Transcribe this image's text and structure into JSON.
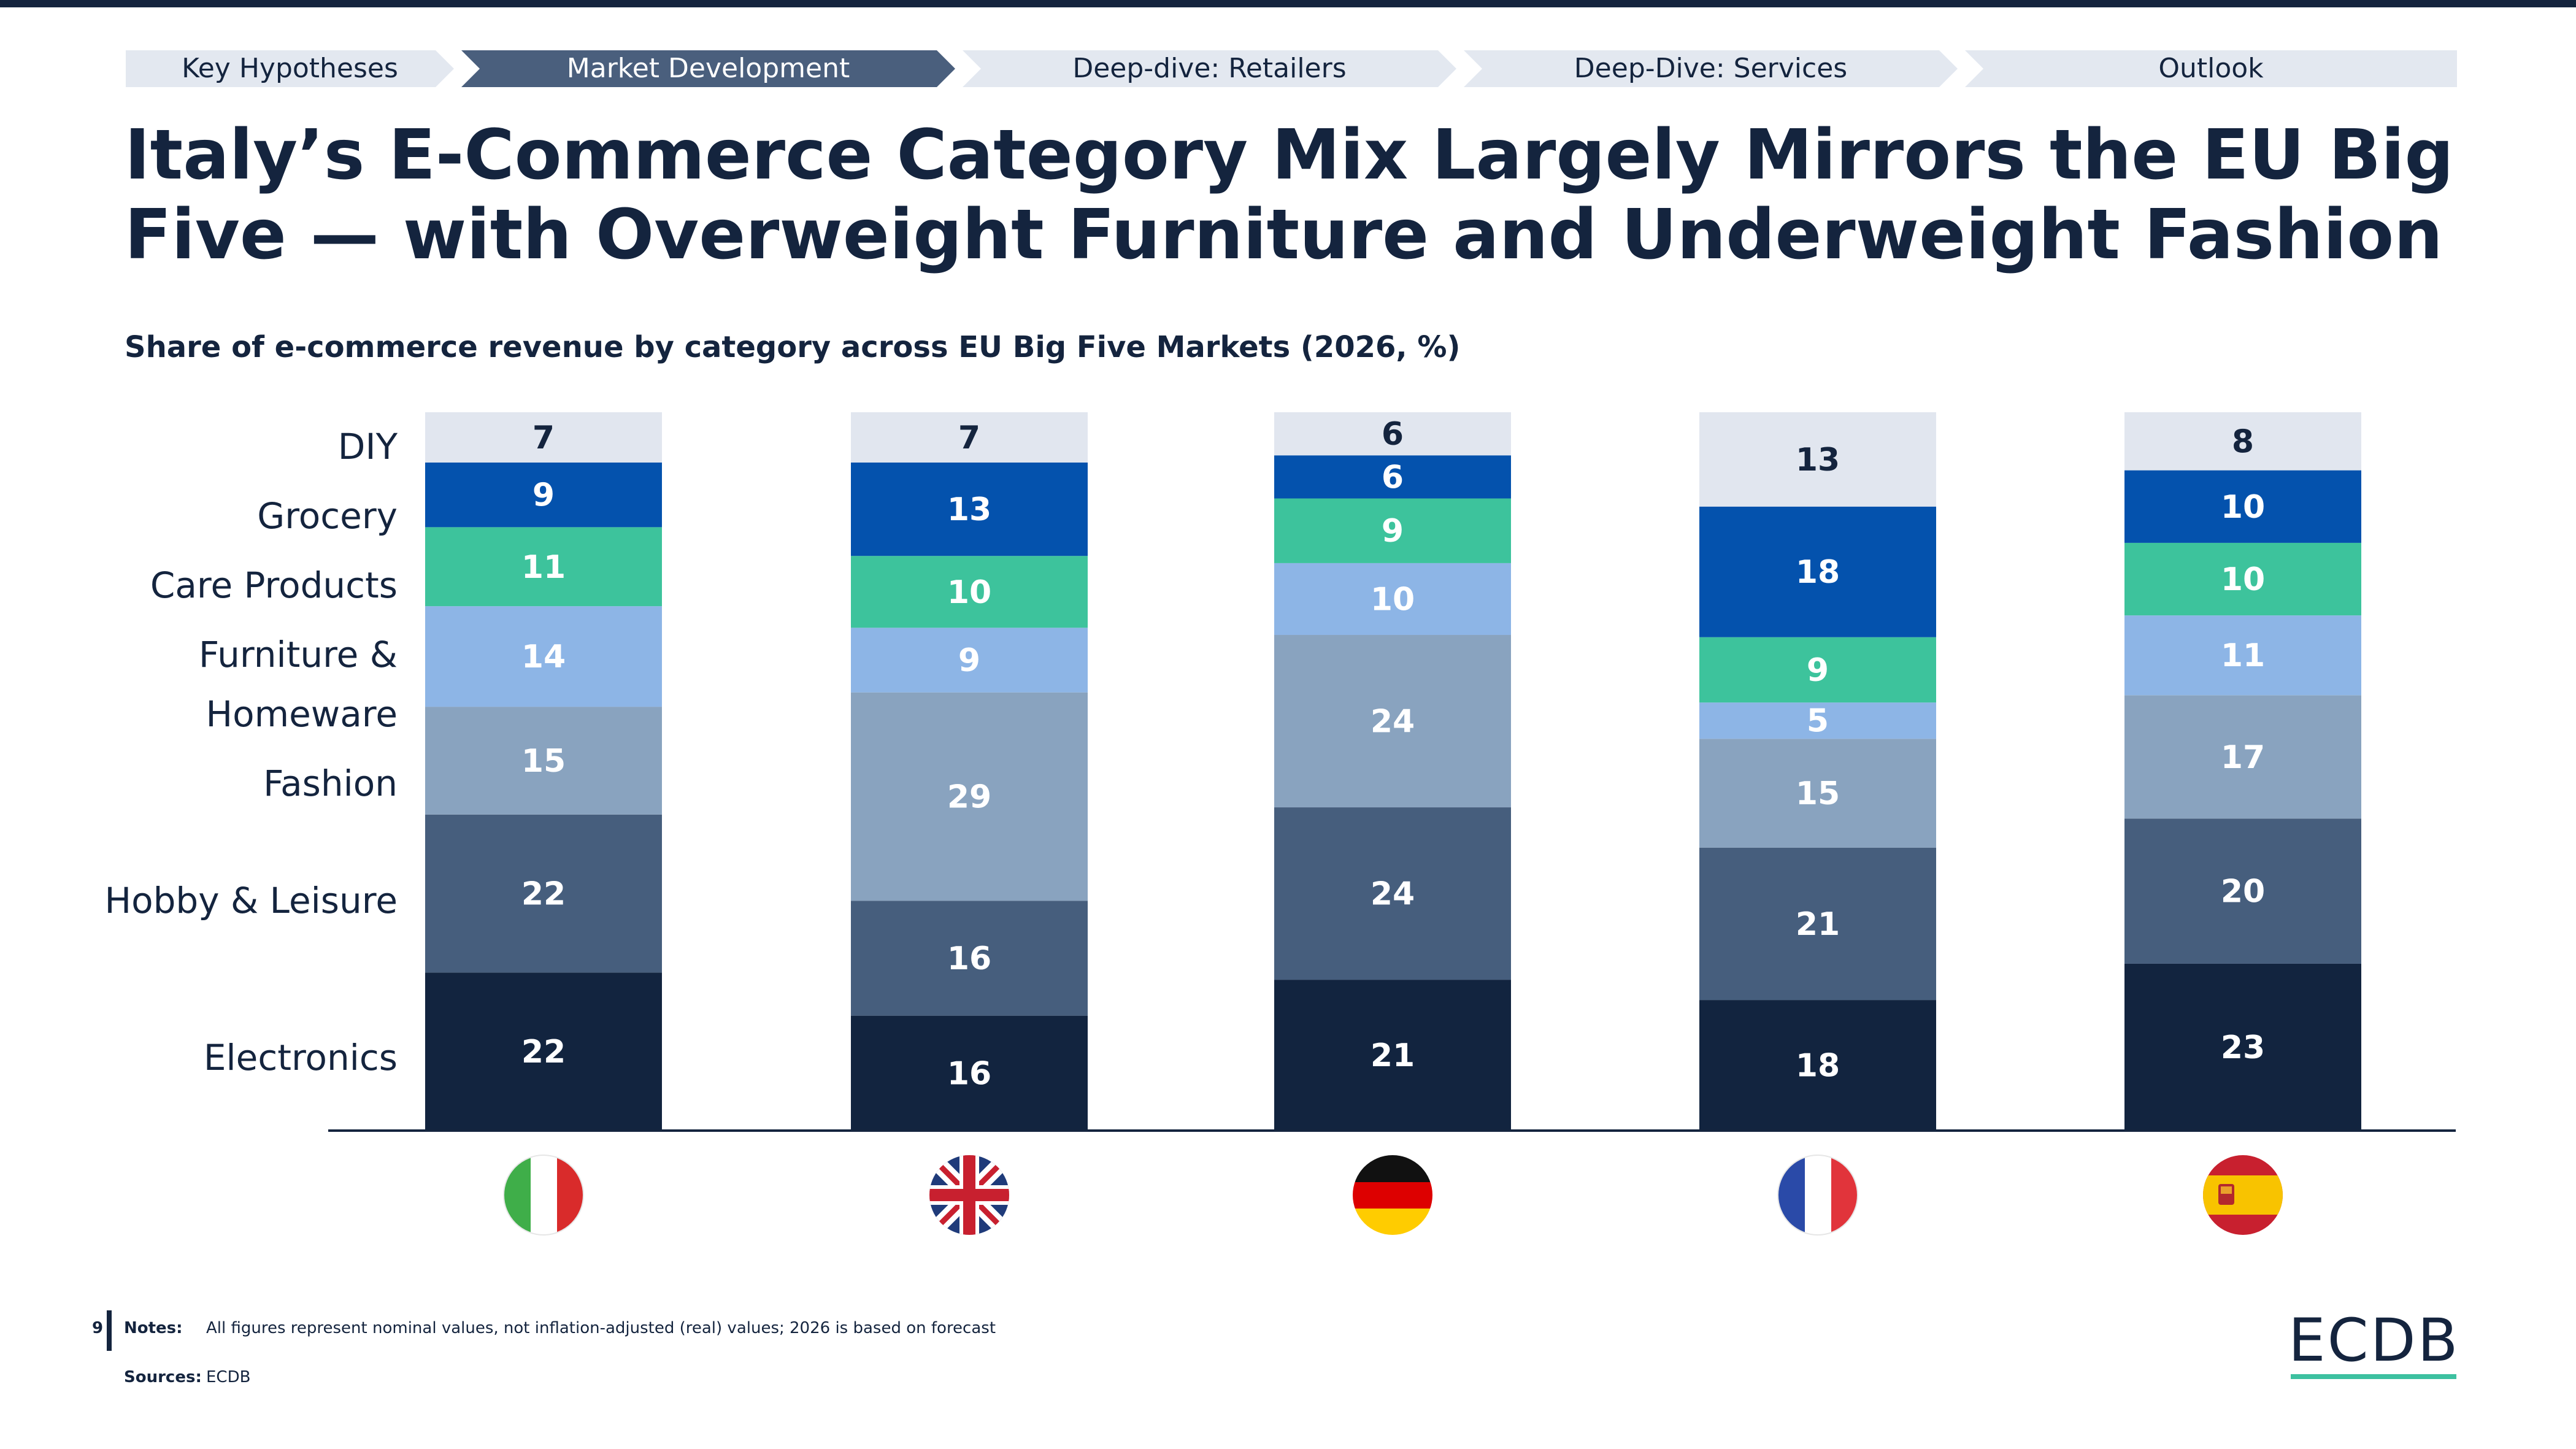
{
  "nav": {
    "steps": [
      {
        "label": "Key Hypotheses",
        "active": false
      },
      {
        "label": "Market Development",
        "active": true
      },
      {
        "label": "Deep-dive: Retailers",
        "active": false
      },
      {
        "label": "Deep-Dive: Services",
        "active": false
      },
      {
        "label": "Outlook",
        "active": false
      }
    ]
  },
  "title": "Italy’s E-Commerce Category Mix Largely Mirrors the EU Big Five — with Overweight Furniture and Underweight Fashion",
  "subtitle": "Share of e-commerce revenue by category across EU Big Five Markets (2026, %)",
  "category_labels": {
    "diy": "DIY",
    "grocery": "Grocery",
    "care": "Care Products",
    "furniture_1": "Furniture &",
    "furniture_2": "Homeware",
    "fashion": "Fashion",
    "hobby": "Hobby & Leisure",
    "electronics": "Electronics"
  },
  "chart_data": {
    "type": "bar",
    "stacked": true,
    "title": "Share of e-commerce revenue by category across EU Big Five Markets (2026, %)",
    "categories": [
      "Italy",
      "United Kingdom",
      "Germany",
      "France",
      "Spain"
    ],
    "category_display": "country flags",
    "series": [
      {
        "name": "Electronics",
        "values": [
          22,
          16,
          21,
          18,
          23
        ],
        "color": "#12243f"
      },
      {
        "name": "Hobby & Leisure",
        "values": [
          22,
          16,
          24,
          21,
          20
        ],
        "color": "#465e7d"
      },
      {
        "name": "Fashion",
        "values": [
          15,
          29,
          24,
          15,
          17
        ],
        "color": "#89a3bf"
      },
      {
        "name": "Furniture & Homeware",
        "values": [
          14,
          9,
          10,
          5,
          11
        ],
        "color": "#8db5e6"
      },
      {
        "name": "Care Products",
        "values": [
          11,
          10,
          9,
          9,
          10
        ],
        "color": "#3dc39c"
      },
      {
        "name": "Grocery",
        "values": [
          9,
          13,
          6,
          18,
          10
        ],
        "color": "#0452ad"
      },
      {
        "name": "DIY",
        "values": [
          7,
          7,
          6,
          13,
          8
        ],
        "color": "#e1e6ef"
      }
    ],
    "legend": "left",
    "grid": false
  },
  "notes": {
    "page_number": "9",
    "notes_label": "Notes:",
    "notes_text": "All figures represent nominal values, not inflation-adjusted (real) values; 2026 is based on forecast",
    "sources_label": "Sources:",
    "sources_text": "ECDB"
  },
  "logo": "ECDB"
}
